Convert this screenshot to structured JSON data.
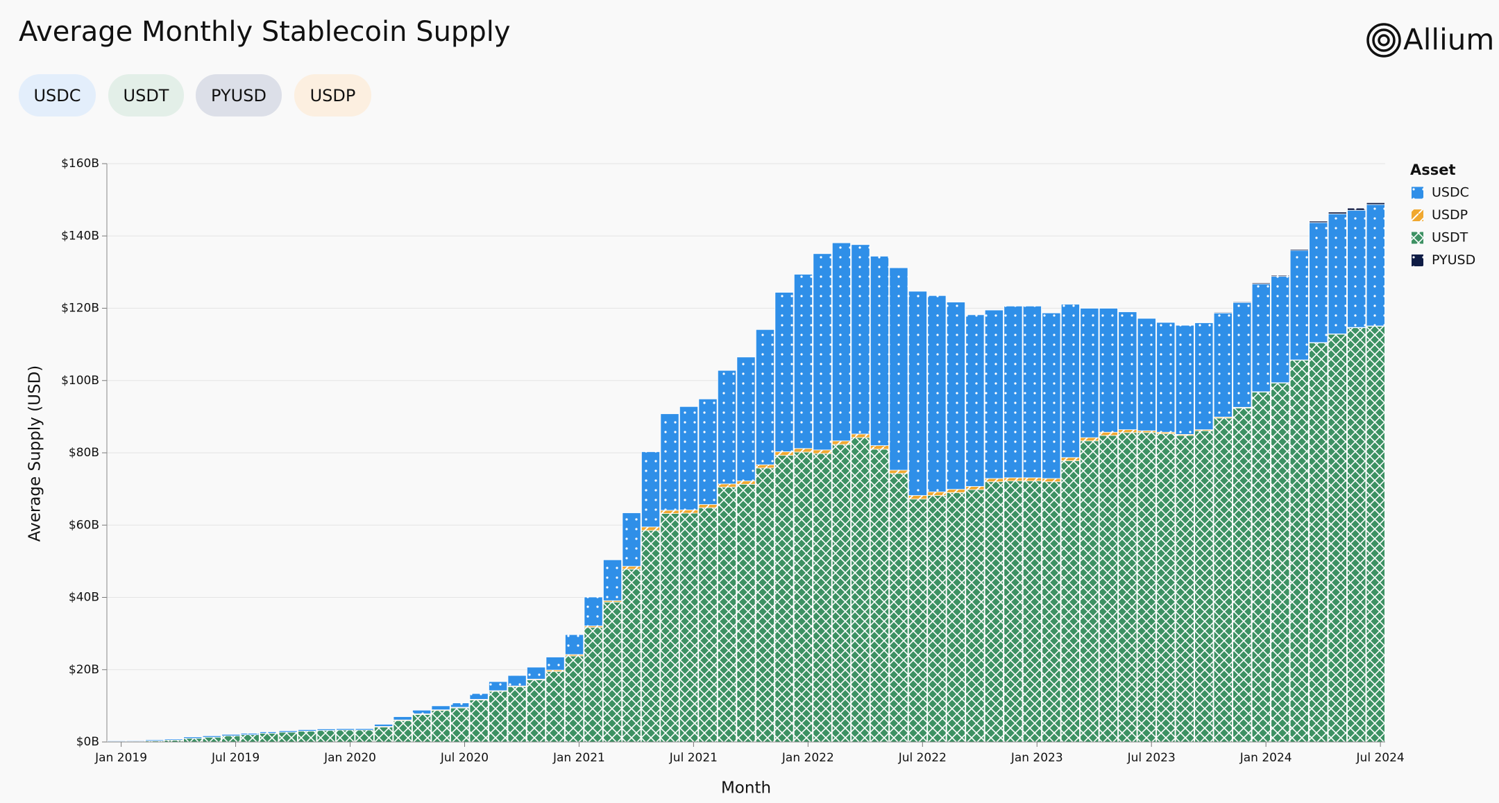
{
  "header": {
    "logo": "Allium"
  },
  "filters": [
    "USDC",
    "USDT",
    "PYUSD",
    "USDP"
  ],
  "chart_data": {
    "type": "stacked_bar",
    "title": "Average Monthly Stablecoin Supply",
    "x_label": "Month",
    "y_label": "Average Supply (USD)",
    "legend_title": "Asset",
    "legend": "right",
    "grid": true,
    "categories": [
      "Jan 2019",
      null,
      null,
      null,
      null,
      null,
      "Jul 2019",
      null,
      null,
      null,
      null,
      null,
      "Jan 2020",
      null,
      null,
      null,
      null,
      null,
      "Jul 2020",
      null,
      null,
      null,
      null,
      null,
      "Jan 2021",
      null,
      null,
      null,
      null,
      null,
      "Jul 2021",
      null,
      null,
      null,
      null,
      null,
      "Jan 2022",
      null,
      null,
      null,
      null,
      null,
      "Jul 2022",
      null,
      null,
      null,
      null,
      null,
      "Jan 2023",
      null,
      null,
      null,
      null,
      null,
      "Jul 2023",
      null,
      null,
      null,
      null,
      null,
      "Jan 2024",
      null,
      null,
      null,
      null,
      null,
      "Jul 2024"
    ],
    "ylim": [
      0,
      160
    ],
    "yticks": [
      {
        "value": 0,
        "label": "$0B"
      },
      {
        "value": 20,
        "label": "$20B"
      },
      {
        "value": 40,
        "label": "$40B"
      },
      {
        "value": 60,
        "label": "$60B"
      },
      {
        "value": 80,
        "label": "$80B"
      },
      {
        "value": 100,
        "label": "$100B"
      },
      {
        "value": 120,
        "label": "$120B"
      },
      {
        "value": 140,
        "label": "$140B"
      },
      {
        "value": 160,
        "label": "$160B"
      }
    ],
    "series": [
      {
        "name": "USDC",
        "color": "#2f8fe8",
        "values": [
          0.2,
          0.2,
          0.3,
          0.3,
          0.4,
          0.4,
          0.4,
          0.4,
          0.4,
          0.4,
          0.4,
          0.4,
          0.4,
          0.4,
          0.6,
          0.9,
          1.0,
          1.1,
          1.2,
          1.6,
          2.5,
          2.9,
          3.3,
          3.6,
          5.5,
          8.0,
          11.3,
          14.8,
          20.8,
          26.7,
          28.6,
          29.2,
          31.4,
          34.3,
          37.4,
          44.1,
          48.2,
          54.3,
          54.8,
          52.4,
          52.4,
          56.0,
          56.5,
          54.3,
          51.8,
          47.5,
          46.6,
          47.5,
          47.5,
          45.8,
          42.4,
          35.8,
          34.3,
          32.6,
          31.1,
          30.4,
          30.2,
          29.6,
          28.8,
          29.0,
          29.8,
          29.4,
          30.3,
          33.2,
          33.2,
          32.4,
          33.6
        ]
      },
      {
        "name": "USDP",
        "color": "#f0a830",
        "values": [
          0,
          0,
          0,
          0,
          0,
          0,
          0,
          0,
          0,
          0,
          0,
          0,
          0,
          0,
          0.2,
          0.2,
          0.2,
          0.2,
          0.2,
          0.2,
          0.2,
          0.2,
          0.2,
          0.4,
          0.4,
          0.4,
          0.4,
          0.8,
          1.0,
          0.9,
          0.9,
          0.9,
          0.9,
          0.9,
          0.9,
          1.0,
          1.0,
          1.0,
          1.0,
          1.0,
          1.0,
          0.9,
          1.0,
          1.0,
          0.9,
          0.9,
          0.9,
          0.9,
          0.9,
          0.9,
          0.9,
          0.9,
          0.9,
          0.8,
          0.5,
          0.4,
          0.3,
          0.3,
          0.3,
          0.2,
          0.1,
          0.1,
          0.1,
          0.1,
          0.1,
          0.1,
          0.1
        ]
      },
      {
        "name": "USDT",
        "color": "#3d9163",
        "values": [
          0.1,
          0.2,
          0.3,
          0.5,
          1.0,
          1.3,
          1.7,
          2.0,
          2.4,
          2.7,
          3.0,
          3.2,
          3.3,
          3.3,
          4.1,
          5.9,
          7.6,
          8.7,
          9.4,
          11.6,
          14.0,
          15.3,
          17.2,
          19.5,
          23.8,
          31.7,
          38.7,
          47.8,
          58.5,
          63.2,
          63.3,
          64.8,
          70.5,
          71.3,
          75.8,
          79.3,
          80.2,
          79.8,
          82.3,
          84.2,
          81.0,
          74.3,
          67.2,
          68.2,
          69.0,
          69.8,
          72.0,
          72.2,
          72.2,
          72.0,
          77.8,
          83.3,
          84.8,
          85.6,
          85.6,
          85.3,
          84.8,
          86.1,
          89.6,
          92.4,
          96.8,
          99.3,
          105.6,
          110.4,
          112.8,
          114.6,
          115.0
        ]
      },
      {
        "name": "PYUSD",
        "color": "#0f1c45",
        "values": [
          0,
          0,
          0,
          0,
          0,
          0,
          0,
          0,
          0,
          0,
          0,
          0,
          0,
          0,
          0,
          0,
          0,
          0,
          0,
          0,
          0,
          0,
          0,
          0,
          0,
          0,
          0,
          0,
          0,
          0,
          0,
          0,
          0,
          0,
          0,
          0,
          0,
          0,
          0,
          0,
          0,
          0,
          0,
          0,
          0,
          0,
          0,
          0,
          0,
          0,
          0,
          0,
          0,
          0,
          0,
          0.05,
          0.1,
          0.15,
          0.2,
          0.2,
          0.3,
          0.3,
          0.3,
          0.4,
          0.5,
          0.6,
          0.5
        ]
      }
    ]
  }
}
